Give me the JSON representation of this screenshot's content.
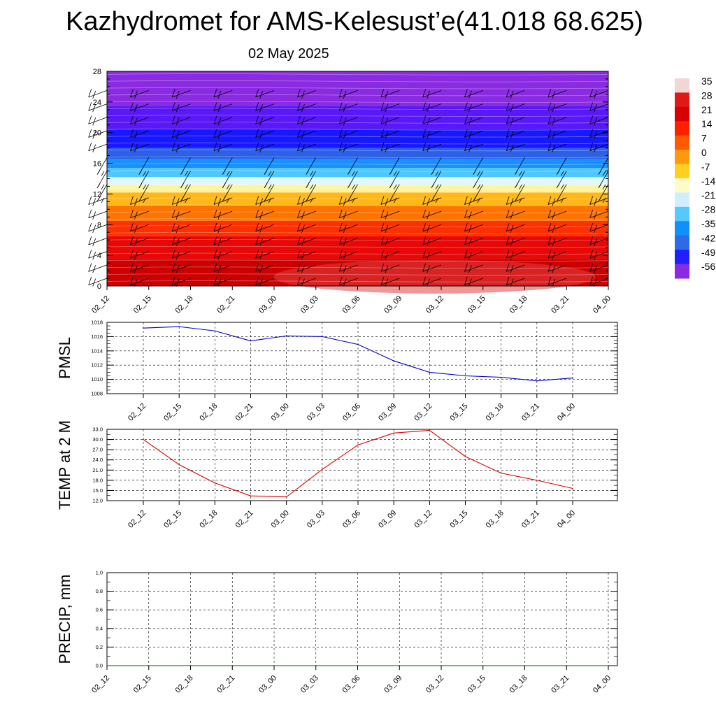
{
  "title": "Kazhydromet for AMS-Kelesust’e(41.018 68.625)",
  "subtitle": "02 May 2025",
  "colors": {
    "pmsl_line": "#0000cc",
    "temp_line": "#dd0000",
    "precip_line": "#006400",
    "barb": "#000000",
    "grid": "#000000"
  },
  "chart_data": [
    {
      "type": "heatmap",
      "description_of_field": "temperature by height with wind barbs",
      "x_ticks": [
        "02_12",
        "02_15",
        "02_18",
        "02_21",
        "03_00",
        "03_03",
        "03_06",
        "03_09",
        "03_12",
        "03_15",
        "03_18",
        "03_21",
        "04_00"
      ],
      "y_ticks": [
        "0",
        "4",
        "8",
        "12",
        "16",
        "20",
        "24",
        "28"
      ],
      "ylim": [
        0,
        28
      ],
      "colorbar_labels": [
        "35",
        "28",
        "21",
        "14",
        "7",
        "0",
        "-7",
        "-14",
        "-21",
        "-28",
        "-35",
        "-42",
        "-49",
        "-56"
      ],
      "colorbar_colors": [
        "#f2d6d6",
        "#e01818",
        "#d80000",
        "#ff2000",
        "#ff5a00",
        "#ff9a10",
        "#ffd020",
        "#fffbc8",
        "#cfefff",
        "#55c8ff",
        "#1090ff",
        "#2e6ae8",
        "#2020ff",
        "#8a2be2"
      ],
      "color_bands": [
        {
          "h0": 0,
          "h1": 3.5,
          "color": "#cc0000"
        },
        {
          "h0": 3.5,
          "h1": 6.5,
          "color": "#e80808"
        },
        {
          "h0": 6.5,
          "h1": 8.5,
          "color": "#ff3000"
        },
        {
          "h0": 8.5,
          "h1": 10.5,
          "color": "#ff7400"
        },
        {
          "h0": 10.5,
          "h1": 12.2,
          "color": "#ffb818"
        },
        {
          "h0": 12.2,
          "h1": 13.2,
          "color": "#fff4a0"
        },
        {
          "h0": 13.2,
          "h1": 14.2,
          "color": "#dff7ff"
        },
        {
          "h0": 14.2,
          "h1": 15.4,
          "color": "#4cc8ff"
        },
        {
          "h0": 15.4,
          "h1": 16.6,
          "color": "#1890ff"
        },
        {
          "h0": 16.6,
          "h1": 18.0,
          "color": "#2c60e8"
        },
        {
          "h0": 18.0,
          "h1": 20.5,
          "color": "#1818ff"
        },
        {
          "h0": 20.5,
          "h1": 23.5,
          "color": "#5a18f8"
        },
        {
          "h0": 23.5,
          "h1": 28,
          "color": "#8a2be2"
        }
      ]
    },
    {
      "type": "line",
      "ylabel": "PMSL",
      "x": [
        "02_12",
        "02_15",
        "02_18",
        "02_21",
        "03_00",
        "03_03",
        "03_06",
        "03_09",
        "03_12",
        "03_15",
        "03_18",
        "03_21",
        "04_00"
      ],
      "values": [
        1017.2,
        1017.4,
        1016.8,
        1015.4,
        1016.1,
        1016.0,
        1014.9,
        1012.6,
        1011.0,
        1010.5,
        1010.3,
        1009.8,
        1010.2
      ],
      "y_ticks": [
        "1008",
        "1010",
        "1012",
        "1014",
        "1016",
        "1018"
      ],
      "ylim": [
        1008,
        1018
      ],
      "grid": true
    },
    {
      "type": "line",
      "ylabel": "TEMP at 2 M",
      "x": [
        "02_12",
        "02_15",
        "02_18",
        "02_21",
        "03_00",
        "03_03",
        "03_06",
        "03_09",
        "03_12",
        "03_15",
        "03_18",
        "03_21",
        "04_00"
      ],
      "values": [
        30.0,
        22.6,
        17.2,
        13.4,
        13.1,
        21.2,
        28.4,
        31.9,
        32.7,
        25.0,
        20.1,
        18.0,
        15.6
      ],
      "y_ticks": [
        "12.0",
        "15.0",
        "18.0",
        "21.0",
        "24.0",
        "27.0",
        "30.0",
        "33.0"
      ],
      "ylim": [
        12,
        33
      ],
      "grid": true
    },
    {
      "type": "line",
      "ylabel": "PRECIP, mm",
      "x": [
        "02_12",
        "02_15",
        "02_18",
        "02_21",
        "03_00",
        "03_03",
        "03_06",
        "03_09",
        "03_12",
        "03_15",
        "03_18",
        "03_21",
        "04_00"
      ],
      "values": [
        0,
        0,
        0,
        0,
        0,
        0,
        0,
        0,
        0,
        0,
        0,
        0,
        0
      ],
      "y_ticks": [
        "0.0",
        "0.2",
        "0.4",
        "0.6",
        "0.8",
        "1.0"
      ],
      "ylim": [
        0,
        1
      ],
      "grid": true
    }
  ]
}
